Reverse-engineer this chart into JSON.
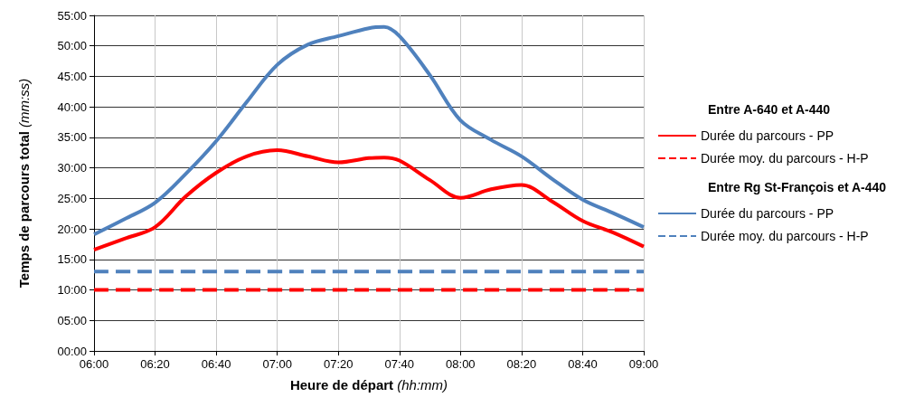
{
  "chart_data": {
    "type": "line",
    "xlabel": "Heure de départ (hh:mm)",
    "ylabel": "Temps de parcours total (mm:ss)",
    "annotations": [
      "Entre A-640 et A-440",
      "Entre Rg St-François et A-440"
    ],
    "x": [
      6,
      6.1667,
      6.3333,
      6.5,
      6.6667,
      6.8333,
      7,
      7.1667,
      7.3333,
      7.5,
      7.5833,
      7.6667,
      7.8333,
      8,
      8.1667,
      8.3333,
      8.5,
      8.6667,
      8.8333,
      9
    ],
    "series": [
      {
        "name": "Durée du parcours - PP",
        "color": "#ff0000",
        "line_style": "solid",
        "values": [
          16.6,
          18.4,
          20.3,
          25.3,
          29.2,
          31.9,
          32.9,
          31.9,
          30.9,
          31.6,
          31.7,
          31.2,
          28,
          25.1,
          26.5,
          27.2,
          24.5,
          21.3,
          19.4,
          17.1
        ]
      },
      {
        "name": "Durée moy. du parcours - H-P",
        "color": "#ff0000",
        "line_style": "dashed",
        "values": [
          10,
          10,
          10,
          10,
          10,
          10,
          10,
          10,
          10,
          10,
          10,
          10,
          10,
          10,
          10,
          10,
          10,
          10,
          10,
          10
        ]
      },
      {
        "name": "Durée du parcours - PP",
        "color": "#4f81bd",
        "line_style": "solid",
        "values": [
          19.1,
          21.6,
          24.3,
          29,
          34.4,
          40.8,
          46.9,
          50.2,
          51.6,
          52.9,
          53.1,
          51.6,
          45.2,
          37.8,
          34.6,
          31.9,
          28.2,
          24.8,
          22.6,
          20.3
        ]
      },
      {
        "name": "Durée moy. du parcours - H-P",
        "color": "#4f81bd",
        "line_style": "dashed",
        "values": [
          13,
          13,
          13,
          13,
          13,
          13,
          13,
          13,
          13,
          13,
          13,
          13,
          13,
          13,
          13,
          13,
          13,
          13,
          13,
          13
        ]
      }
    ],
    "xlim": [
      6,
      9
    ],
    "xticks": [
      {
        "value": 6,
        "label": "06:00"
      },
      {
        "value": 6.3333,
        "label": "06:20"
      },
      {
        "value": 6.6667,
        "label": "06:40"
      },
      {
        "value": 7,
        "label": "07:00"
      },
      {
        "value": 7.3333,
        "label": "07:20"
      },
      {
        "value": 7.6667,
        "label": "07:40"
      },
      {
        "value": 8,
        "label": "08:00"
      },
      {
        "value": 8.3333,
        "label": "08:20"
      },
      {
        "value": 8.6667,
        "label": "08:40"
      },
      {
        "value": 9,
        "label": "09:00"
      }
    ],
    "ylim": [
      0,
      55
    ],
    "yticks": [
      {
        "value": 0,
        "label": "00:00"
      },
      {
        "value": 5,
        "label": "05:00"
      },
      {
        "value": 10,
        "label": "10:00"
      },
      {
        "value": 15,
        "label": "15:00"
      },
      {
        "value": 20,
        "label": "20:00"
      },
      {
        "value": 25,
        "label": "25:00"
      },
      {
        "value": 30,
        "label": "30:00"
      },
      {
        "value": 35,
        "label": "35:00"
      },
      {
        "value": 40,
        "label": "40:00"
      },
      {
        "value": 45,
        "label": "45:00"
      },
      {
        "value": 50,
        "label": "50:00"
      },
      {
        "value": 55,
        "label": "55:00"
      }
    ],
    "grid": true,
    "legend": "right",
    "marker": "none"
  }
}
